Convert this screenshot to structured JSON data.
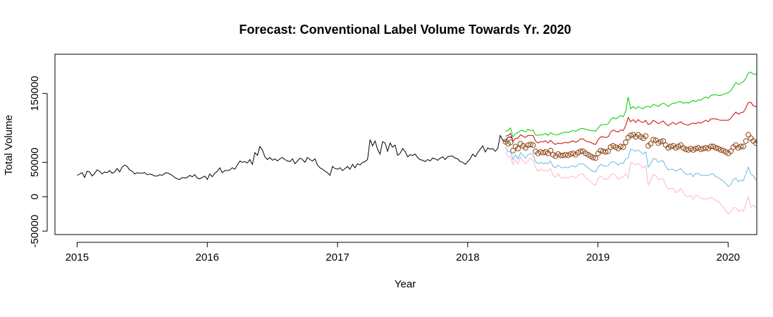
{
  "chart_data": {
    "type": "line",
    "title": "Forecast: Conventional Label Volume Towards Yr. 2020",
    "xlabel": "Year",
    "ylabel": "Total Volume",
    "xlim": [
      2014.83,
      2020.22
    ],
    "ylim": [
      -55000,
      207000
    ],
    "x_ticks": [
      2015,
      2016,
      2017,
      2018,
      2019,
      2020
    ],
    "x_tick_labels": [
      "2015",
      "2016",
      "2017",
      "2018",
      "2019",
      "2020"
    ],
    "y_ticks": [
      -50000,
      0,
      50000,
      150000
    ],
    "y_tick_labels": [
      "-50000",
      "0",
      "50000",
      "150000"
    ],
    "grid": false,
    "legend": "none",
    "colors": {
      "history": "#000000",
      "upper95": "#00cc00",
      "upper80": "#cc0000",
      "forecast_points": "#8b4513",
      "lower80": "#6bb8e0",
      "lower95": "#ffb6c1"
    },
    "series": [
      {
        "key": "history",
        "x_start": 2015.0,
        "x_step": 0.01923,
        "values": [
          31000,
          33000,
          35000,
          28000,
          37000,
          36000,
          30000,
          34000,
          39000,
          37000,
          33000,
          36000,
          35000,
          38000,
          34000,
          36000,
          41000,
          36000,
          43000,
          46000,
          44000,
          39000,
          37000,
          33000,
          35000,
          34000,
          34000,
          35000,
          32000,
          33000,
          32000,
          30000,
          30000,
          32000,
          31000,
          34000,
          35000,
          33000,
          31000,
          28000,
          26000,
          25000,
          28000,
          27000,
          28000,
          31000,
          29000,
          32000,
          27000,
          26000,
          28000,
          30000,
          25000,
          33000,
          29000,
          34000,
          37000,
          42000,
          35000,
          38000,
          38000,
          39000,
          42000,
          40000,
          46000,
          52000,
          50000,
          51000,
          49000,
          54000,
          47000,
          64000,
          60000,
          73000,
          68000,
          58000,
          54000,
          57000,
          53000,
          55000,
          52000,
          55000,
          57000,
          54000,
          52000,
          51000,
          55000,
          48000,
          52000,
          56000,
          54000,
          50000,
          57000,
          54000,
          52000,
          55000,
          46000,
          42000,
          40000,
          37000,
          35000,
          31000,
          44000,
          41000,
          40000,
          42000,
          38000,
          41000,
          44000,
          40000,
          47000,
          42000,
          48000,
          46000,
          50000,
          51000,
          54000,
          83000,
          74000,
          81000,
          69000,
          62000,
          80000,
          78000,
          66000,
          78000,
          72000,
          75000,
          60000,
          63000,
          70000,
          66000,
          58000,
          61000,
          60000,
          62000,
          57000,
          54000,
          53000,
          51000,
          54000,
          52000,
          56000,
          55000,
          53000,
          56000,
          58000,
          54000,
          58000,
          59000,
          59000,
          56000,
          55000,
          51000,
          50000,
          47000,
          51000,
          55000,
          62000,
          58000,
          64000,
          69000,
          74000,
          65000,
          71000,
          69000,
          70000,
          66000,
          70000,
          89000,
          82000,
          80000,
          86000,
          87000,
          84000
        ]
      },
      {
        "key": "forecast",
        "x_start": 2018.29,
        "x_step": 0.01923,
        "values": [
          80000,
          77000,
          79000,
          67000,
          73000,
          70000,
          77000,
          74000,
          71000,
          75000,
          76000,
          75000,
          66000,
          63000,
          65000,
          64000,
          65000,
          63000,
          67000,
          61000,
          59000,
          62000,
          60000,
          60000,
          61000,
          60000,
          62000,
          63000,
          61000,
          64000,
          66000,
          66000,
          63000,
          61000,
          59000,
          57000,
          56000,
          63000,
          67000,
          66000,
          65000,
          66000,
          72000,
          74000,
          72000,
          70000,
          73000,
          72000,
          79000,
          86000,
          89000,
          90000,
          87000,
          90000,
          87000,
          85000,
          88000,
          74000,
          77000,
          83000,
          82000,
          78000,
          80000,
          81000,
          75000,
          71000,
          73000,
          74000,
          71000,
          73000,
          75000,
          71000,
          69000,
          68000,
          70000,
          68000,
          70000,
          71000,
          69000,
          70000,
          71000,
          70000,
          73000,
          73000,
          71000,
          70000,
          68000,
          67000,
          65000,
          63000,
          66000,
          72000,
          75000,
          71000,
          73000,
          73000,
          81000,
          90000,
          85000,
          81000,
          78000,
          80000,
          84000,
          106000,
          89000,
          95000,
          100000
        ]
      },
      {
        "key": "upper95",
        "x_start": 2018.29,
        "x_step": 0.01923,
        "values": [
          95000,
          96000,
          100000,
          87000,
          92000,
          93000,
          96000,
          96000,
          94000,
          98000,
          96000,
          97000,
          90000,
          89000,
          90000,
          90000,
          92000,
          89000,
          93000,
          91000,
          90000,
          90000,
          92000,
          93000,
          94000,
          93000,
          95000,
          96000,
          95000,
          97000,
          99000,
          99000,
          98000,
          97000,
          96000,
          96000,
          95000,
          100000,
          104000,
          105000,
          105000,
          106000,
          112000,
          115000,
          113000,
          115000,
          118000,
          116000,
          124000,
          145000,
          128000,
          131000,
          128000,
          131000,
          129000,
          128000,
          131000,
          131000,
          130000,
          134000,
          133000,
          131000,
          134000,
          136000,
          134000,
          131000,
          134000,
          136000,
          136000,
          138000,
          138000,
          136000,
          137000,
          136000,
          138000,
          140000,
          138000,
          141000,
          140000,
          143000,
          145000,
          143000,
          147000,
          148000,
          148000,
          147000,
          147000,
          149000,
          150000,
          151000,
          154000,
          160000,
          166000,
          163000,
          165000,
          167000,
          172000,
          180000,
          181000,
          178000,
          178000,
          180000,
          186000,
          208000,
          190000,
          198000,
          200000
        ]
      },
      {
        "key": "upper80",
        "x_start": 2018.29,
        "x_step": 0.01923,
        "values": [
          88000,
          89000,
          92000,
          80000,
          85000,
          85000,
          90000,
          88000,
          86000,
          89000,
          89000,
          89000,
          81000,
          78000,
          80000,
          80000,
          81000,
          78000,
          82000,
          78000,
          76000,
          78000,
          77000,
          78000,
          79000,
          78000,
          80000,
          81000,
          79000,
          81000,
          84000,
          84000,
          81000,
          80000,
          79000,
          77000,
          76000,
          83000,
          87000,
          87000,
          86000,
          87000,
          94000,
          97000,
          95000,
          94000,
          97000,
          96000,
          103000,
          115000,
          109000,
          112000,
          108000,
          112000,
          109000,
          108000,
          111000,
          105000,
          106000,
          111000,
          109000,
          106000,
          108000,
          110000,
          106000,
          103000,
          106000,
          108000,
          105000,
          107000,
          109000,
          106000,
          105000,
          104000,
          106000,
          107000,
          106000,
          108000,
          107000,
          109000,
          111000,
          109000,
          113000,
          113000,
          113000,
          112000,
          111000,
          111000,
          111000,
          111000,
          114000,
          119000,
          123000,
          120000,
          122000,
          123000,
          129000,
          137000,
          137000,
          132000,
          131000,
          133000,
          137000,
          157000,
          141000,
          148000,
          149000
        ]
      },
      {
        "key": "lower80",
        "x_start": 2018.29,
        "x_step": 0.01923,
        "values": [
          72000,
          65000,
          66000,
          54000,
          61000,
          55000,
          64000,
          60000,
          56000,
          61000,
          63000,
          61000,
          51000,
          48000,
          50000,
          48000,
          49000,
          48000,
          52000,
          44000,
          42000,
          46000,
          43000,
          42000,
          43000,
          42000,
          44000,
          45000,
          43000,
          47000,
          48000,
          48000,
          45000,
          42000,
          39000,
          37000,
          36000,
          43000,
          47000,
          45000,
          44000,
          45000,
          50000,
          51000,
          49000,
          46000,
          49000,
          48000,
          55000,
          57000,
          69000,
          68000,
          66000,
          68000,
          65000,
          62000,
          65000,
          43000,
          48000,
          55000,
          55000,
          50000,
          52000,
          52000,
          44000,
          39000,
          40000,
          40000,
          37000,
          39000,
          41000,
          36000,
          33000,
          32000,
          34000,
          29000,
          34000,
          34000,
          31000,
          31000,
          31000,
          31000,
          33000,
          33000,
          29000,
          28000,
          25000,
          23000,
          19000,
          15000,
          18000,
          25000,
          27000,
          22000,
          24000,
          23000,
          33000,
          43000,
          33000,
          30000,
          25000,
          27000,
          31000,
          55000,
          37000,
          42000,
          46000
        ]
      },
      {
        "key": "lower95",
        "x_start": 2018.29,
        "x_step": 0.01923,
        "values": [
          65000,
          58000,
          58000,
          47000,
          54000,
          47000,
          58000,
          52000,
          48000,
          52000,
          56000,
          53000,
          42000,
          37000,
          40000,
          38000,
          38000,
          37000,
          41000,
          31000,
          28000,
          34000,
          28000,
          27000,
          28000,
          27000,
          29000,
          30000,
          27000,
          31000,
          33000,
          33000,
          28000,
          25000,
          22000,
          18000,
          17000,
          26000,
          30000,
          27000,
          25000,
          26000,
          32000,
          33000,
          31000,
          25000,
          28000,
          28000,
          34000,
          27000,
          50000,
          49000,
          46000,
          49000,
          45000,
          42000,
          45000,
          17000,
          24000,
          32000,
          31000,
          25000,
          26000,
          26000,
          16000,
          11000,
          12000,
          12000,
          6000,
          8000,
          12000,
          6000,
          1000,
          0,
          2000,
          -4000,
          2000,
          1000,
          -2000,
          -3000,
          -3000,
          -3000,
          -1000,
          -2000,
          -6000,
          -7000,
          -11000,
          -15000,
          -20000,
          -25000,
          -22000,
          -16000,
          -16000,
          -21000,
          -19000,
          -21000,
          -10000,
          0,
          -15000,
          -12000,
          -16000,
          -17000,
          -14000,
          4000,
          -12000,
          -8000,
          -2000
        ]
      }
    ]
  }
}
